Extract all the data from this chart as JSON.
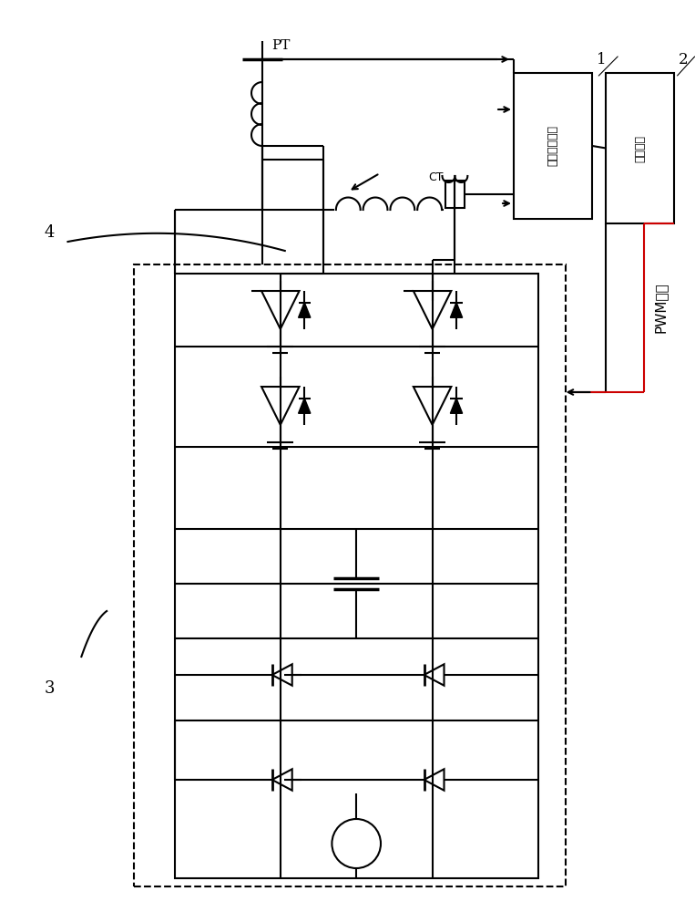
{
  "bg_color": "#ffffff",
  "lc": "#000000",
  "box1_label": "信号采集装置",
  "box2_label": "主控制器",
  "pwm_label": "PWM控制",
  "pt_label": "PT",
  "ct_label": "CT",
  "label1": "1",
  "label2": "2",
  "label3": "3",
  "label4": "4",
  "figw": 7.63,
  "figh": 10.0,
  "dpi": 100
}
